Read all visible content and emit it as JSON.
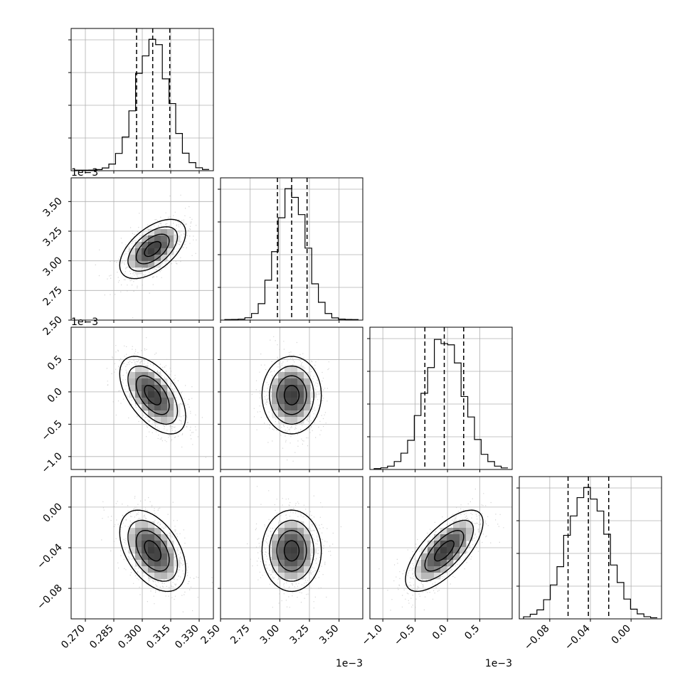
{
  "chart_data": {
    "type": "corner",
    "grid": true,
    "parameters": [
      {
        "range": [
          0.2625,
          0.3375
        ],
        "ticks": [
          0.27,
          0.285,
          0.3,
          0.315,
          0.33
        ],
        "tick_labels": [
          "0.270",
          "0.285",
          "0.300",
          "0.315",
          "0.330"
        ],
        "offset_label": "",
        "quantiles": [
          0.297,
          0.3055,
          0.3145
        ],
        "peak": 0.3055,
        "sigma": 0.0087
      },
      {
        "range": [
          2.5,
          3.7
        ],
        "ticks": [
          2.5,
          2.75,
          3.0,
          3.25,
          3.5
        ],
        "tick_labels": [
          "2.50",
          "2.75",
          "3.00",
          "3.25",
          "3.50"
        ],
        "offset_label": "1e−3",
        "quantiles": [
          2.98,
          3.1,
          3.23
        ],
        "peak": 3.1,
        "sigma": 0.125
      },
      {
        "range": [
          -1.2,
          1.0
        ],
        "ticks": [
          -1.0,
          -0.5,
          0.0,
          0.5
        ],
        "tick_labels": [
          "−1.0",
          "−0.5",
          "0.0",
          "0.5"
        ],
        "offset_label": "1e−3",
        "quantiles": [
          -0.35,
          -0.05,
          0.25
        ],
        "peak": -0.05,
        "sigma": 0.3
      },
      {
        "range": [
          -0.11,
          0.03
        ],
        "ticks": [
          -0.08,
          -0.04,
          0.0
        ],
        "tick_labels": [
          "−0.08",
          "−0.04",
          "0.00"
        ],
        "offset_label": "",
        "quantiles": [
          -0.062,
          -0.042,
          -0.022
        ],
        "peak": -0.043,
        "sigma": 0.02
      }
    ],
    "hist_peak_fraction": 0.92,
    "y_axes": [
      {
        "row": 1,
        "tick_labels": [
          "2.50",
          "2.75",
          "3.00",
          "3.25",
          "3.50"
        ],
        "offset_label": "1e−3"
      },
      {
        "row": 2,
        "tick_labels": [
          "−1.0",
          "−0.5",
          "0.0",
          "0.5"
        ],
        "offset_label": "1e−3"
      },
      {
        "row": 3,
        "tick_labels": [
          "−0.08",
          "−0.04",
          "0.00"
        ],
        "offset_label": ""
      }
    ],
    "pairs": [
      {
        "row": 1,
        "col": 0,
        "correlation": 0.55
      },
      {
        "row": 2,
        "col": 0,
        "correlation": -0.55
      },
      {
        "row": 2,
        "col": 1,
        "correlation": 0.0
      },
      {
        "row": 3,
        "col": 0,
        "correlation": -0.45
      },
      {
        "row": 3,
        "col": 1,
        "correlation": 0.0
      },
      {
        "row": 3,
        "col": 2,
        "correlation": 0.7
      }
    ],
    "contour_sigma_levels": [
      0.5,
      1.0,
      1.5,
      2.0
    ],
    "colors": {
      "points": "#b8b8b8",
      "density_max": "#000000",
      "line": "#000000",
      "grid": "#b0b0b0"
    }
  }
}
